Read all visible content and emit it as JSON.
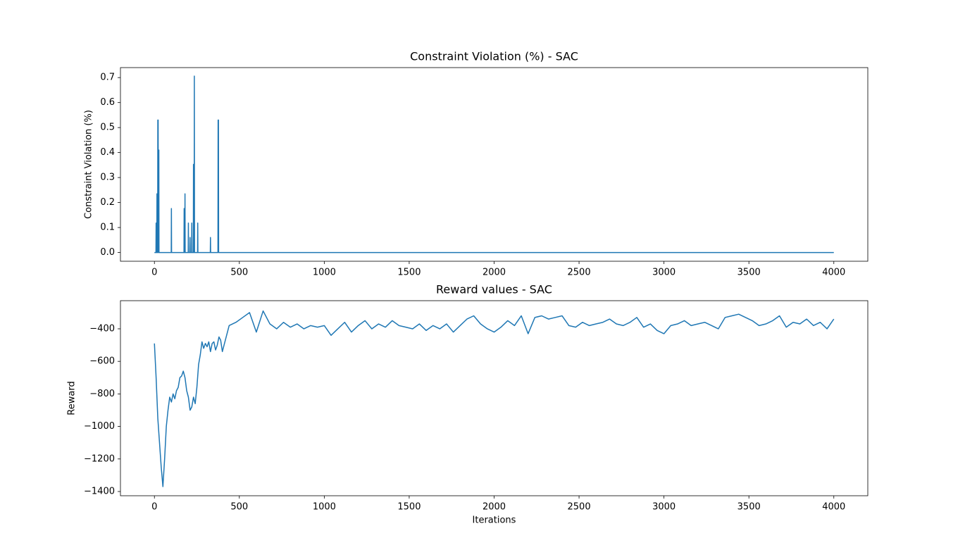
{
  "chart_data": [
    {
      "type": "line",
      "title": "Constraint Violation (%) - SAC",
      "y_label": "Constraint Violation (%)",
      "x": [
        0,
        9,
        10,
        11,
        14,
        15,
        16,
        19,
        20,
        22,
        23,
        25,
        26,
        27,
        99,
        100,
        101,
        174,
        175,
        176,
        179,
        180,
        181,
        199,
        200,
        201,
        209,
        210,
        211,
        219,
        220,
        221,
        229,
        230,
        231,
        234,
        235,
        236,
        254,
        255,
        256,
        329,
        330,
        331,
        374,
        375,
        377,
        378,
        4000
      ],
      "series": [
        {
          "name": "Constraint Violation",
          "color": "#1f77b4",
          "values": [
            0,
            0,
            0.118,
            0,
            0,
            0.235,
            0,
            0,
            0.53,
            0.53,
            0,
            0,
            0.41,
            0,
            0,
            0.176,
            0,
            0,
            0.176,
            0,
            0,
            0.235,
            0,
            0,
            0.118,
            0,
            0,
            0.06,
            0,
            0,
            0.118,
            0,
            0,
            0.353,
            0,
            0,
            0.706,
            0,
            0,
            0.118,
            0,
            0,
            0.06,
            0,
            0,
            0.53,
            0.53,
            0,
            0
          ]
        }
      ],
      "xlim": [
        -200,
        4200
      ],
      "xticks": [
        0,
        500,
        1000,
        1500,
        2000,
        2500,
        3000,
        3500,
        4000
      ],
      "ylim": [
        -0.035,
        0.74
      ],
      "yticks": [
        {
          "value": 0,
          "label": "0.0"
        },
        0.1,
        0.2,
        0.3,
        0.4,
        0.5,
        0.6,
        0.7
      ]
    },
    {
      "type": "line",
      "title": "Reward values - SAC",
      "x_label": "Iterations",
      "y_label": "Reward",
      "x": [
        0,
        10,
        20,
        30,
        40,
        50,
        60,
        70,
        80,
        90,
        100,
        110,
        120,
        130,
        140,
        150,
        160,
        170,
        180,
        190,
        200,
        210,
        220,
        230,
        240,
        250,
        260,
        270,
        280,
        290,
        300,
        310,
        320,
        330,
        340,
        350,
        360,
        370,
        380,
        390,
        400,
        440,
        480,
        520,
        560,
        600,
        640,
        680,
        720,
        760,
        800,
        840,
        880,
        920,
        960,
        1000,
        1040,
        1080,
        1120,
        1160,
        1200,
        1240,
        1280,
        1320,
        1360,
        1400,
        1440,
        1480,
        1520,
        1560,
        1600,
        1640,
        1680,
        1720,
        1760,
        1800,
        1840,
        1880,
        1920,
        1960,
        2000,
        2040,
        2080,
        2120,
        2160,
        2200,
        2240,
        2280,
        2320,
        2360,
        2400,
        2440,
        2480,
        2520,
        2560,
        2600,
        2640,
        2680,
        2720,
        2760,
        2800,
        2840,
        2880,
        2920,
        2960,
        3000,
        3040,
        3080,
        3120,
        3160,
        3200,
        3240,
        3280,
        3320,
        3360,
        3400,
        3440,
        3480,
        3520,
        3560,
        3600,
        3640,
        3680,
        3720,
        3760,
        3800,
        3840,
        3880,
        3920,
        3960,
        4000
      ],
      "series": [
        {
          "name": "Reward",
          "color": "#1f77b4",
          "values": [
            -490,
            -700,
            -950,
            -1100,
            -1250,
            -1370,
            -1200,
            -1000,
            -900,
            -820,
            -850,
            -800,
            -830,
            -780,
            -760,
            -700,
            -690,
            -660,
            -700,
            -780,
            -820,
            -900,
            -880,
            -820,
            -860,
            -760,
            -620,
            -560,
            -480,
            -520,
            -490,
            -510,
            -480,
            -540,
            -490,
            -480,
            -530,
            -500,
            -450,
            -470,
            -540,
            -380,
            -360,
            -330,
            -300,
            -420,
            -290,
            -370,
            -400,
            -360,
            -390,
            -370,
            -400,
            -380,
            -390,
            -380,
            -440,
            -400,
            -360,
            -420,
            -380,
            -350,
            -400,
            -370,
            -390,
            -350,
            -380,
            -390,
            -400,
            -370,
            -410,
            -380,
            -400,
            -370,
            -420,
            -380,
            -340,
            -320,
            -370,
            -400,
            -420,
            -390,
            -350,
            -380,
            -320,
            -430,
            -330,
            -320,
            -340,
            -330,
            -320,
            -380,
            -390,
            -360,
            -380,
            -370,
            -360,
            -340,
            -370,
            -380,
            -360,
            -330,
            -390,
            -370,
            -410,
            -430,
            -380,
            -370,
            -350,
            -380,
            -370,
            -360,
            -380,
            -400,
            -330,
            -320,
            -310,
            -330,
            -350,
            -380,
            -370,
            -350,
            -320,
            -390,
            -360,
            -370,
            -340,
            -380,
            -360,
            -400,
            -340
          ]
        }
      ],
      "xlim": [
        -200,
        4200
      ],
      "xticks": [
        0,
        500,
        1000,
        1500,
        2000,
        2500,
        3000,
        3500,
        4000
      ],
      "ylim": [
        -1426,
        -227
      ],
      "yticks": [
        {
          "value": -1400,
          "label": "−1400"
        },
        {
          "value": -1200,
          "label": "−1200"
        },
        {
          "value": -1000,
          "label": "−1000"
        },
        {
          "value": -800,
          "label": "−800"
        },
        {
          "value": -600,
          "label": "−600"
        },
        {
          "value": -400,
          "label": "−400"
        }
      ]
    }
  ]
}
